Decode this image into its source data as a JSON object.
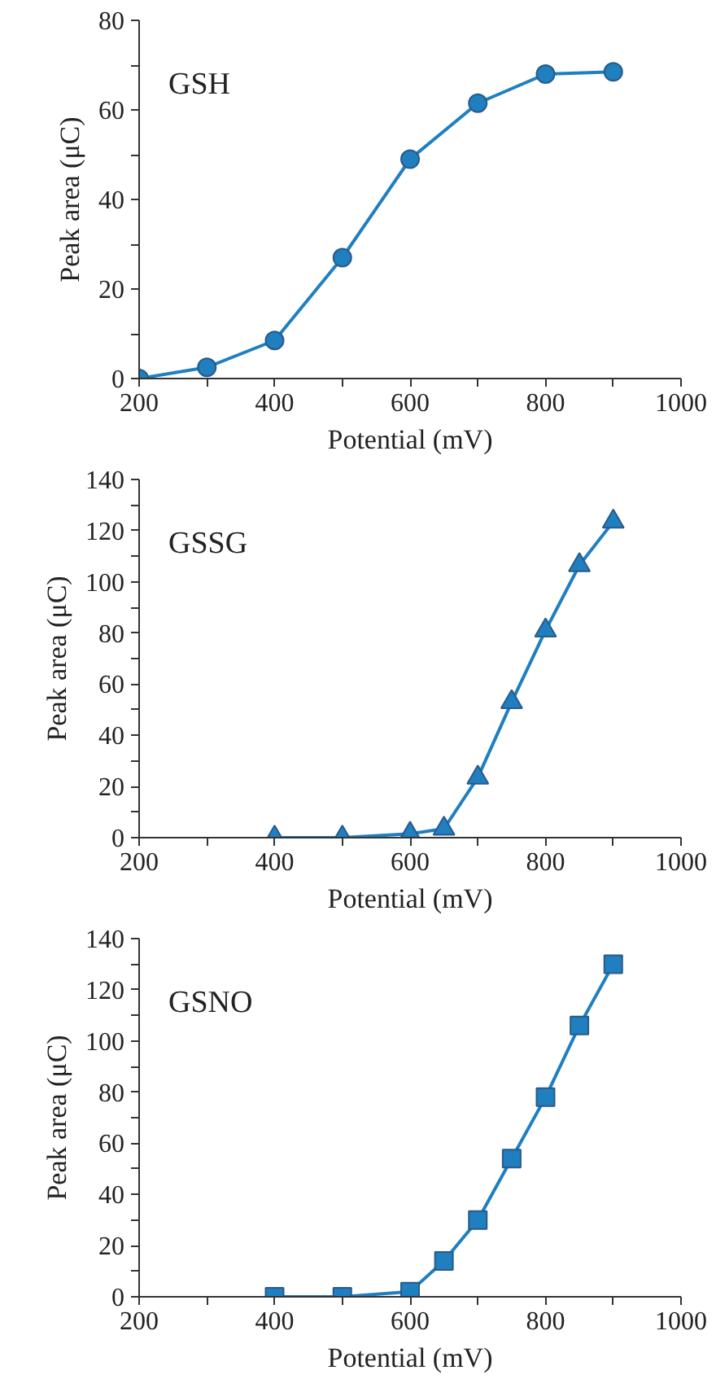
{
  "chart_data": [
    {
      "type": "line",
      "title": "GSH",
      "xlabel": "Potential (mV)",
      "ylabel": "Peak area (μC)",
      "marker": "circle",
      "line_style": "solid",
      "grid": false,
      "x": [
        200,
        300,
        400,
        500,
        600,
        700,
        800,
        900
      ],
      "series": [
        {
          "color": "#1f7fbf",
          "values": [
            0,
            2.5,
            8.5,
            27,
            49,
            61.5,
            68,
            68.5
          ]
        }
      ],
      "xlim": [
        200,
        1000
      ],
      "xticks": [
        200,
        {
          "value": 300,
          "label": null
        },
        400,
        {
          "value": 500,
          "label": null
        },
        600,
        {
          "value": 700,
          "label": null
        },
        800,
        {
          "value": 900,
          "label": null
        },
        1000
      ],
      "ylim": [
        0,
        80
      ],
      "yticks": [
        0,
        {
          "value": 10,
          "label": null
        },
        20,
        {
          "value": 30,
          "label": null
        },
        40,
        {
          "value": 50,
          "label": null
        },
        60,
        {
          "value": 70,
          "label": null
        },
        80
      ]
    },
    {
      "type": "line",
      "title": "GSSG",
      "xlabel": "Potential (mV)",
      "ylabel": "Peak area (μC)",
      "marker": "triangle",
      "line_style": "solid",
      "grid": false,
      "x": [
        400,
        500,
        600,
        650,
        700,
        750,
        800,
        850,
        900
      ],
      "series": [
        {
          "color": "#1f7fbf",
          "values": [
            0,
            0,
            1.5,
            3.5,
            23.5,
            53,
            81,
            106.5,
            123.5
          ]
        }
      ],
      "xlim": [
        200,
        1000
      ],
      "xticks": [
        200,
        {
          "value": 300,
          "label": null
        },
        400,
        {
          "value": 500,
          "label": null
        },
        600,
        {
          "value": 700,
          "label": null
        },
        800,
        {
          "value": 900,
          "label": null
        },
        1000
      ],
      "ylim": [
        0,
        140
      ],
      "yticks": [
        0,
        {
          "value": 10,
          "label": null
        },
        20,
        {
          "value": 30,
          "label": null
        },
        40,
        {
          "value": 50,
          "label": null
        },
        60,
        {
          "value": 70,
          "label": null
        },
        80,
        {
          "value": 90,
          "label": null
        },
        100,
        {
          "value": 110,
          "label": null
        },
        120,
        {
          "value": 130,
          "label": null
        },
        140
      ]
    },
    {
      "type": "line",
      "title": "GSNO",
      "xlabel": "Potential (mV)",
      "ylabel": "Peak area (μC)",
      "marker": "square",
      "line_style": "solid",
      "grid": false,
      "x": [
        400,
        500,
        600,
        650,
        700,
        750,
        800,
        850,
        900
      ],
      "series": [
        {
          "color": "#1f7fbf",
          "values": [
            0,
            0,
            2,
            14,
            30,
            54,
            78,
            106,
            130
          ]
        }
      ],
      "xlim": [
        200,
        1000
      ],
      "xticks": [
        200,
        {
          "value": 300,
          "label": null
        },
        400,
        {
          "value": 500,
          "label": null
        },
        600,
        {
          "value": 700,
          "label": null
        },
        800,
        {
          "value": 900,
          "label": null
        },
        1000
      ],
      "ylim": [
        0,
        140
      ],
      "yticks": [
        0,
        {
          "value": 10,
          "label": null
        },
        20,
        {
          "value": 30,
          "label": null
        },
        40,
        {
          "value": 50,
          "label": null
        },
        60,
        {
          "value": 70,
          "label": null
        },
        80,
        {
          "value": 90,
          "label": null
        },
        100,
        {
          "value": 110,
          "label": null
        },
        120,
        {
          "value": 130,
          "label": null
        },
        140
      ]
    }
  ]
}
